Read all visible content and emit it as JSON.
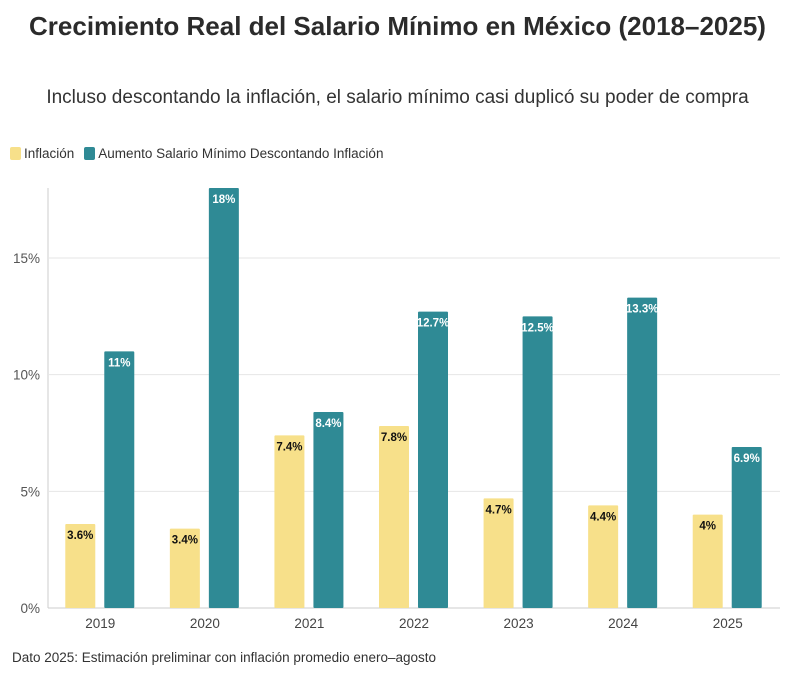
{
  "title": "Crecimiento Real del Salario Mínimo en México (2018–2025)",
  "subtitle": "Incluso descontando la inflación, el salario mínimo casi duplicó su poder de compra",
  "footnote": "Dato 2025: Estimación preliminar con inflación promedio enero–agosto",
  "colors": {
    "inflation": "#f7e08a",
    "wage": "#2f8a95",
    "grid": "#e6e6e6",
    "label_dark": "#111111",
    "label_light": "#ffffff"
  },
  "chart_data": {
    "type": "bar",
    "categories": [
      "2019",
      "2020",
      "2021",
      "2022",
      "2023",
      "2024",
      "2025"
    ],
    "series": [
      {
        "name": "Inflación",
        "values": [
          3.6,
          3.4,
          7.4,
          7.8,
          4.7,
          4.4,
          4.0
        ],
        "labels": [
          "3.6%",
          "3.4%",
          "7.4%",
          "7.8%",
          "4.7%",
          "4.4%",
          "4%"
        ]
      },
      {
        "name": "Aumento Salario Mínimo Descontando Inflación",
        "values": [
          11,
          18,
          8.4,
          12.7,
          12.5,
          13.3,
          6.9
        ],
        "labels": [
          "11%",
          "18%",
          "8.4%",
          "12.7%",
          "12.5%",
          "13.3%",
          "6.9%"
        ]
      }
    ],
    "yticks": [
      0,
      5,
      10,
      15
    ],
    "ytick_labels": [
      "0%",
      "5%",
      "10%",
      "15%"
    ],
    "ylim": [
      0,
      18
    ],
    "grid": true,
    "legend": "top-left"
  }
}
